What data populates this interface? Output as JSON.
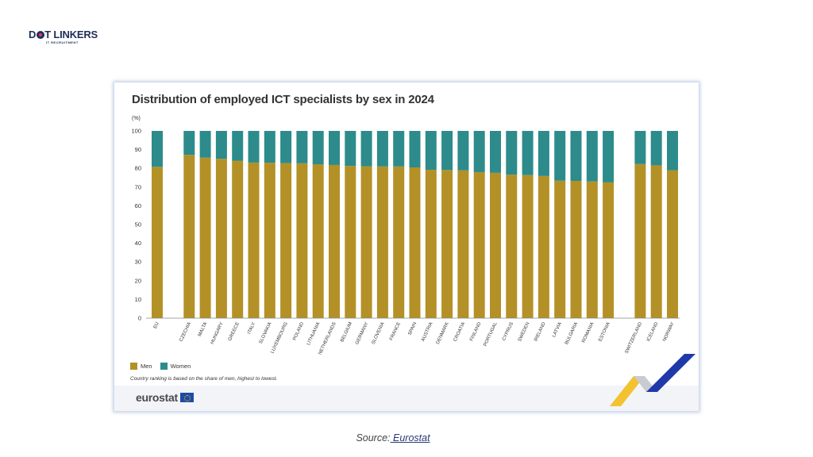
{
  "brand": {
    "name_pre": "D",
    "name_post": "T LINKERS",
    "subtitle": "IT RECRUITMENT"
  },
  "colors": {
    "men": "#b39126",
    "women": "#2d8b8b",
    "axis": "#888888",
    "text": "#333333"
  },
  "source": {
    "label": "Source:",
    "link": " Eurostat"
  },
  "footer": {
    "logo_text": "eurostat"
  },
  "chart_data": {
    "type": "bar",
    "stacked": true,
    "title": "Distribution of employed ICT specialists by sex in 2024",
    "ylabel": "(%)",
    "ylim": [
      0,
      100
    ],
    "yticks": [
      0,
      10,
      20,
      30,
      40,
      50,
      60,
      70,
      80,
      90,
      100
    ],
    "groups": [
      [
        "EU"
      ],
      [
        "CZECHIA",
        "MALTA",
        "HUNGARY",
        "GREECE",
        "ITALY",
        "SLOVAKIA",
        "LUXEMBOURG",
        "POLAND",
        "LITHUANIA",
        "NETHERLANDS",
        "BELGIUM",
        "GERMANY",
        "SLOVENIA",
        "FRANCE",
        "SPAIN",
        "AUSTRIA",
        "DENMARK",
        "CROATIA",
        "FINLAND",
        "PORTUGAL",
        "CYPRUS",
        "SWEDEN",
        "IRELAND",
        "LATVIA",
        "BULGARIA",
        "ROMANIA",
        "ESTONIA"
      ],
      [
        "SWITZERLAND",
        "ICELAND",
        "NORWAY"
      ]
    ],
    "categories": [
      "EU",
      "CZECHIA",
      "MALTA",
      "HUNGARY",
      "GREECE",
      "ITALY",
      "SLOVAKIA",
      "LUXEMBOURG",
      "POLAND",
      "LITHUANIA",
      "NETHERLANDS",
      "BELGIUM",
      "GERMANY",
      "SLOVENIA",
      "FRANCE",
      "SPAIN",
      "AUSTRIA",
      "DENMARK",
      "CROATIA",
      "FINLAND",
      "PORTUGAL",
      "CYPRUS",
      "SWEDEN",
      "IRELAND",
      "LATVIA",
      "BULGARIA",
      "ROMANIA",
      "ESTONIA",
      "SWITZERLAND",
      "ICELAND",
      "NORWAY"
    ],
    "series": [
      {
        "name": "Men",
        "values": [
          80.8,
          87.2,
          85.7,
          85.1,
          84.1,
          83.1,
          83.0,
          82.8,
          82.7,
          82.2,
          81.8,
          81.3,
          81.1,
          81.0,
          81.0,
          80.5,
          79.2,
          79.1,
          78.9,
          78.0,
          77.6,
          76.6,
          76.4,
          75.9,
          73.4,
          73.3,
          73.0,
          72.5,
          82.3,
          81.6,
          79.0
        ]
      },
      {
        "name": "Women",
        "values": [
          19.2,
          12.8,
          14.3,
          14.9,
          15.9,
          16.9,
          17.0,
          17.2,
          17.3,
          17.8,
          18.2,
          18.7,
          18.9,
          19.0,
          19.0,
          19.5,
          20.8,
          20.9,
          21.1,
          22.0,
          22.4,
          23.4,
          23.6,
          24.1,
          26.6,
          26.7,
          27.0,
          27.5,
          17.7,
          18.4,
          21.0
        ]
      }
    ],
    "legend": [
      "Men",
      "Women"
    ],
    "note": "Country ranking is based on the share of men, highest to lowest."
  }
}
